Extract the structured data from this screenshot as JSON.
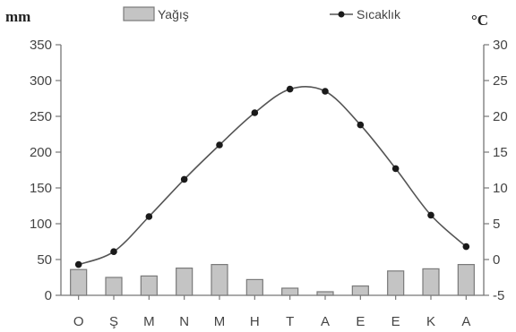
{
  "chart_data": {
    "type": "bar+line",
    "categories": [
      "O",
      "Ş",
      "M",
      "N",
      "M",
      "H",
      "T",
      "A",
      "E",
      "E",
      "K",
      "A"
    ],
    "series": [
      {
        "name": "Yağış",
        "type": "bar",
        "axis": "left",
        "values": [
          36,
          25,
          27,
          38,
          43,
          22,
          10,
          5,
          13,
          34,
          37,
          43
        ]
      },
      {
        "name": "Sıcaklık",
        "type": "line",
        "axis": "right",
        "values": [
          -0.7,
          1.1,
          6.0,
          11.2,
          16.0,
          20.5,
          23.8,
          23.5,
          18.8,
          12.7,
          6.2,
          1.8
        ]
      }
    ],
    "left_axis": {
      "label": "mm",
      "range": [
        0,
        350
      ],
      "ticks": [
        "0",
        "50",
        "100",
        "150",
        "200",
        "250",
        "300",
        "350"
      ]
    },
    "right_axis": {
      "label": "°C",
      "range": [
        -5,
        30
      ],
      "ticks": [
        "-5",
        "0",
        "5",
        "10",
        "15",
        "20",
        "25",
        "30"
      ]
    },
    "legend": {
      "position": "top",
      "items": [
        "Yağış",
        "Sıcaklık"
      ]
    },
    "grid": false,
    "colors": {
      "bar_fill": "#c4c4c4",
      "bar_stroke": "#7a7a7a",
      "line": "#555555",
      "marker": "#1a1a1a",
      "axis": "#777777"
    }
  }
}
